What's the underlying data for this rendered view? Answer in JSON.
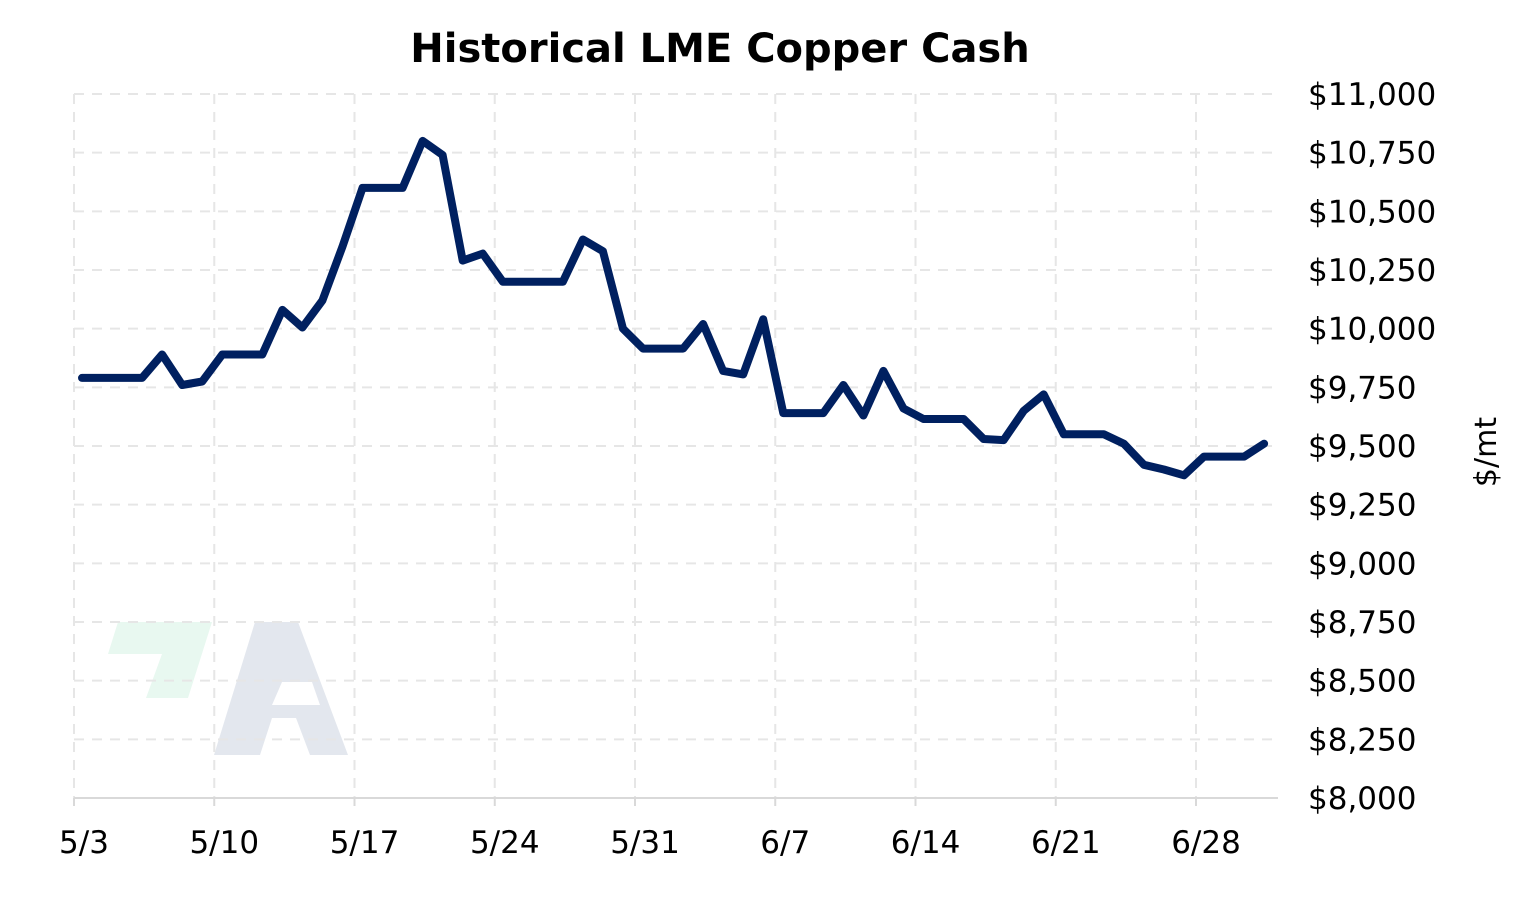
{
  "chart_data": {
    "type": "line",
    "title": "Historical LME Copper Cash",
    "xlabel": "",
    "ylabel": "$/mt",
    "y_axis_side": "right",
    "ylim": [
      8000,
      11000
    ],
    "y_ticks": [
      8000,
      8250,
      8500,
      8750,
      9000,
      9250,
      9500,
      9750,
      10000,
      10250,
      10500,
      10750,
      11000
    ],
    "y_tick_labels": [
      "$8,000",
      "$8,250",
      "$8,500",
      "$8,750",
      "$9,000",
      "$9,250",
      "$9,500",
      "$9,750",
      "$10,000",
      "$10,250",
      "$10,500",
      "$10,750",
      "$11,000"
    ],
    "x_tick_labels": [
      "5/3",
      "5/10",
      "5/17",
      "5/24",
      "5/31",
      "6/7",
      "6/14",
      "6/21",
      "6/28"
    ],
    "grid": true,
    "line_color": "#002060",
    "series": [
      {
        "values": [
          [
            "5/3",
            9790
          ],
          [
            "5/4",
            9790
          ],
          [
            "5/5",
            9790
          ],
          [
            "5/6",
            9790
          ],
          [
            "5/7",
            9890
          ],
          [
            "5/8",
            9760
          ],
          [
            "5/9",
            9775
          ],
          [
            "5/10",
            9890
          ],
          [
            "5/11",
            9890
          ],
          [
            "5/12",
            9890
          ],
          [
            "5/13",
            10080
          ],
          [
            "5/14",
            10005
          ],
          [
            "5/15",
            10120
          ],
          [
            "5/16",
            10350
          ],
          [
            "5/17",
            10600
          ],
          [
            "5/18",
            10600
          ],
          [
            "5/19",
            10600
          ],
          [
            "5/20",
            10800
          ],
          [
            "5/21",
            10740
          ],
          [
            "5/22",
            10290
          ],
          [
            "5/23",
            10320
          ],
          [
            "5/24",
            10200
          ],
          [
            "5/25",
            10200
          ],
          [
            "5/26",
            10200
          ],
          [
            "5/27",
            10200
          ],
          [
            "5/28",
            10380
          ],
          [
            "5/29",
            10330
          ],
          [
            "5/30",
            10000
          ],
          [
            "5/31",
            9915
          ],
          [
            "6/1",
            9915
          ],
          [
            "6/2",
            9915
          ],
          [
            "6/3",
            10020
          ],
          [
            "6/4",
            9820
          ],
          [
            "6/5",
            9805
          ],
          [
            "6/6",
            10040
          ],
          [
            "6/7",
            9640
          ],
          [
            "6/8",
            9640
          ],
          [
            "6/9",
            9640
          ],
          [
            "6/10",
            9760
          ],
          [
            "6/11",
            9630
          ],
          [
            "6/12",
            9820
          ],
          [
            "6/13",
            9660
          ],
          [
            "6/14",
            9615
          ],
          [
            "6/15",
            9615
          ],
          [
            "6/16",
            9615
          ],
          [
            "6/17",
            9530
          ],
          [
            "6/18",
            9525
          ],
          [
            "6/19",
            9650
          ],
          [
            "6/20",
            9720
          ],
          [
            "6/21",
            9550
          ],
          [
            "6/22",
            9550
          ],
          [
            "6/23",
            9550
          ],
          [
            "6/24",
            9510
          ],
          [
            "6/25",
            9420
          ],
          [
            "6/26",
            9400
          ],
          [
            "6/27",
            9375
          ],
          [
            "6/28",
            9455
          ],
          [
            "6/29",
            9455
          ],
          [
            "6/30",
            9455
          ],
          [
            "7/1",
            9510
          ]
        ]
      }
    ]
  }
}
